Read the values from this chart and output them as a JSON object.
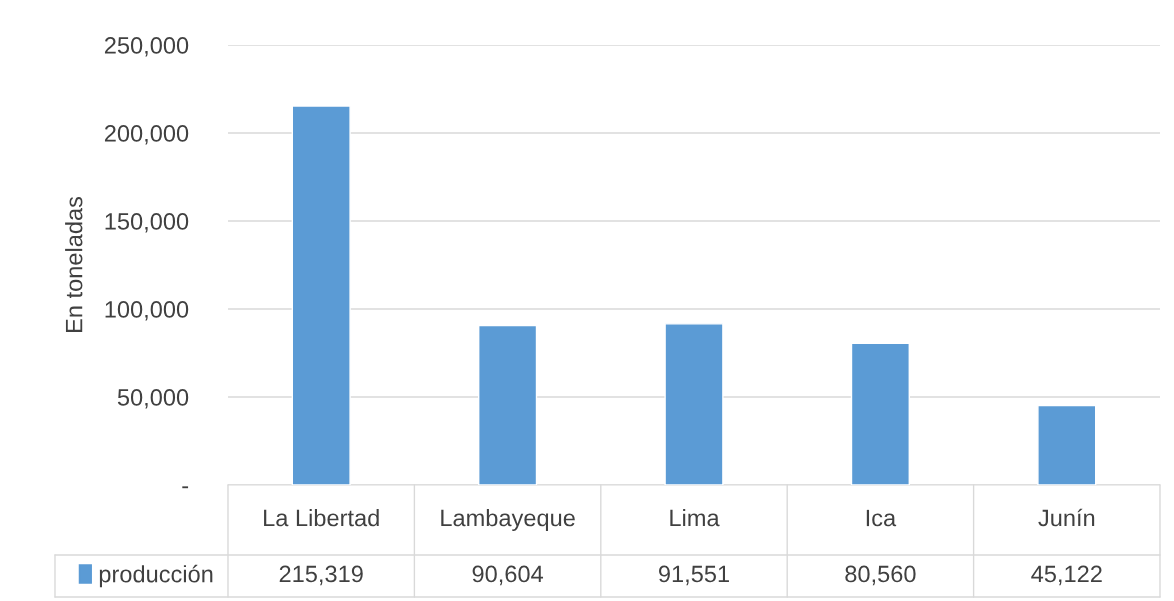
{
  "chart_data": {
    "type": "bar",
    "ylabel": "En toneladas",
    "categories": [
      "La Libertad",
      "Lambayeque",
      "Lima",
      "Ica",
      "Junín"
    ],
    "series": [
      {
        "name": "producción",
        "color": "#5b9bd5",
        "values": [
          215319,
          90604,
          91551,
          80560,
          45122
        ],
        "value_labels": [
          "215,319",
          "90,604",
          "91,551",
          "80,560",
          "45,122"
        ]
      }
    ],
    "ylim": [
      0,
      250000
    ],
    "yticks": [
      {
        "value": 0,
        "label": "-"
      },
      {
        "value": 50000,
        "label": "50,000"
      },
      {
        "value": 100000,
        "label": "100,000"
      },
      {
        "value": 150000,
        "label": "150,000"
      },
      {
        "value": 200000,
        "label": "200,000"
      },
      {
        "value": 250000,
        "label": "250,000"
      }
    ],
    "grid": "y",
    "legend": "bottom"
  }
}
